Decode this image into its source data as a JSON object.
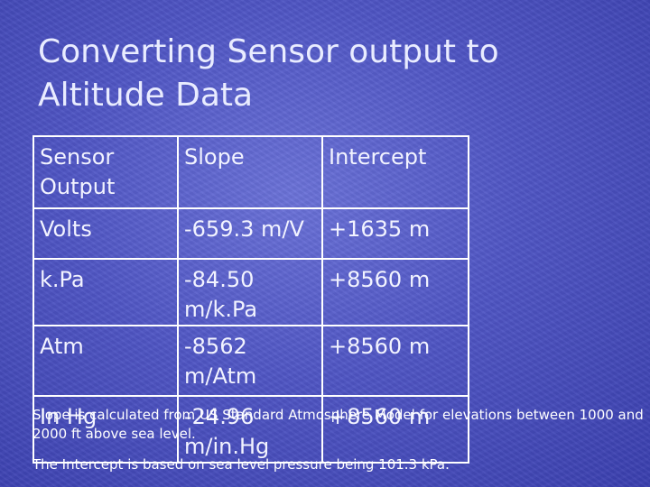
{
  "slide": {
    "title": "Converting Sensor output to Altitude Data"
  },
  "table": {
    "headers": [
      "Sensor Output",
      "Slope",
      "Intercept"
    ],
    "rows": [
      [
        "Volts",
        "-659.3 m/V",
        "+1635 m"
      ],
      [
        "k.Pa",
        "-84.50 m/k.Pa",
        "+8560 m"
      ],
      [
        "Atm",
        "-8562 m/Atm",
        "+8560 m"
      ],
      [
        "In Hg",
        "-24.96 m/in.Hg",
        "+8560 m"
      ]
    ]
  },
  "notes": [
    "Slope is calculated from US Standard Atmosphere Model for elevations between 1000 and 2000 ft above sea level.",
    "The Intercept is based on sea level pressure being 101.3 kPa."
  ]
}
